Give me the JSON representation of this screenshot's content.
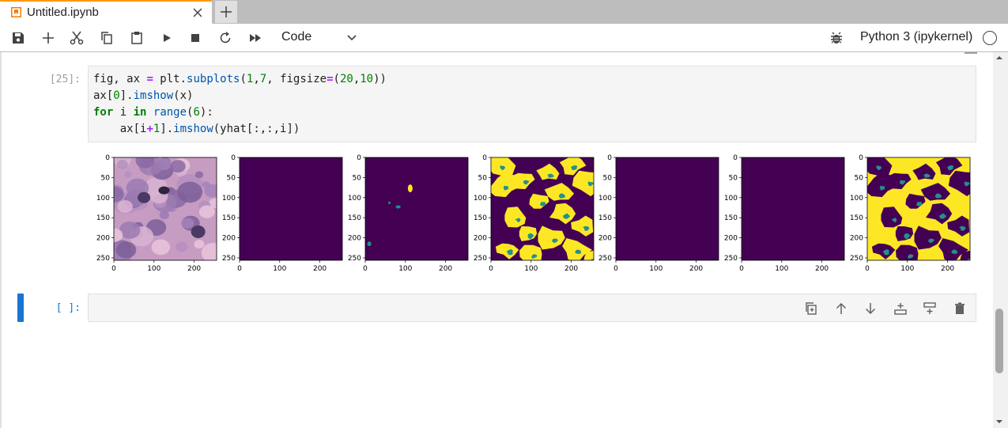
{
  "tab": {
    "title": "Untitled.ipynb",
    "accent": "#ff9900"
  },
  "toolbar": {
    "cell_type": "Code",
    "kernel": "Python 3 (ipykernel)",
    "buttons": [
      "save-icon",
      "add-icon",
      "cut-icon",
      "copy-icon",
      "paste-icon",
      "run-icon",
      "stop-icon",
      "restart-icon",
      "run-all-icon"
    ]
  },
  "cells": {
    "executed": {
      "prompt": "[25]:",
      "code": {
        "line1": {
          "a": "fig, ax ",
          "op": "=",
          "b": " plt.",
          "fn": "subplots",
          "c": "(",
          "n1": "1",
          "d": ",",
          "n2": "7",
          "e": ", figsize",
          "op2": "=",
          "f": "(",
          "n3": "20",
          "g": ",",
          "n4": "10",
          "h": "))"
        },
        "line2": {
          "a": "ax[",
          "n1": "0",
          "b": "].",
          "fn": "imshow",
          "c": "(x)"
        },
        "line3": {
          "kw1": "for",
          "a": " i ",
          "kw2": "in",
          "b": " ",
          "fn": "range",
          "c": "(",
          "n1": "6",
          "d": "):"
        },
        "line4": {
          "a": "    ax[i",
          "op": "+",
          "n1": "1",
          "b": "].",
          "fn": "imshow",
          "c": "(yhat[:,:,i])"
        }
      }
    },
    "empty": {
      "prompt": "[ ]:"
    }
  },
  "chart_data": {
    "type": "heatmap",
    "panels": 7,
    "x_ticks": [
      "0",
      "100",
      "200"
    ],
    "y_ticks": [
      "0",
      "50",
      "100",
      "150",
      "200",
      "250"
    ],
    "xlim": [
      0,
      256
    ],
    "ylim": [
      256,
      0
    ],
    "colormap": {
      "low": "#440154",
      "mid": "#21918c",
      "high": "#fde725"
    },
    "panel_content": [
      "tissue-image",
      "empty",
      "few-spots",
      "blobs",
      "empty",
      "empty",
      "blobs-inverted"
    ]
  },
  "cell_tools": [
    "duplicate-icon",
    "move-up-icon",
    "move-down-icon",
    "insert-above-icon",
    "insert-below-icon",
    "delete-icon"
  ]
}
